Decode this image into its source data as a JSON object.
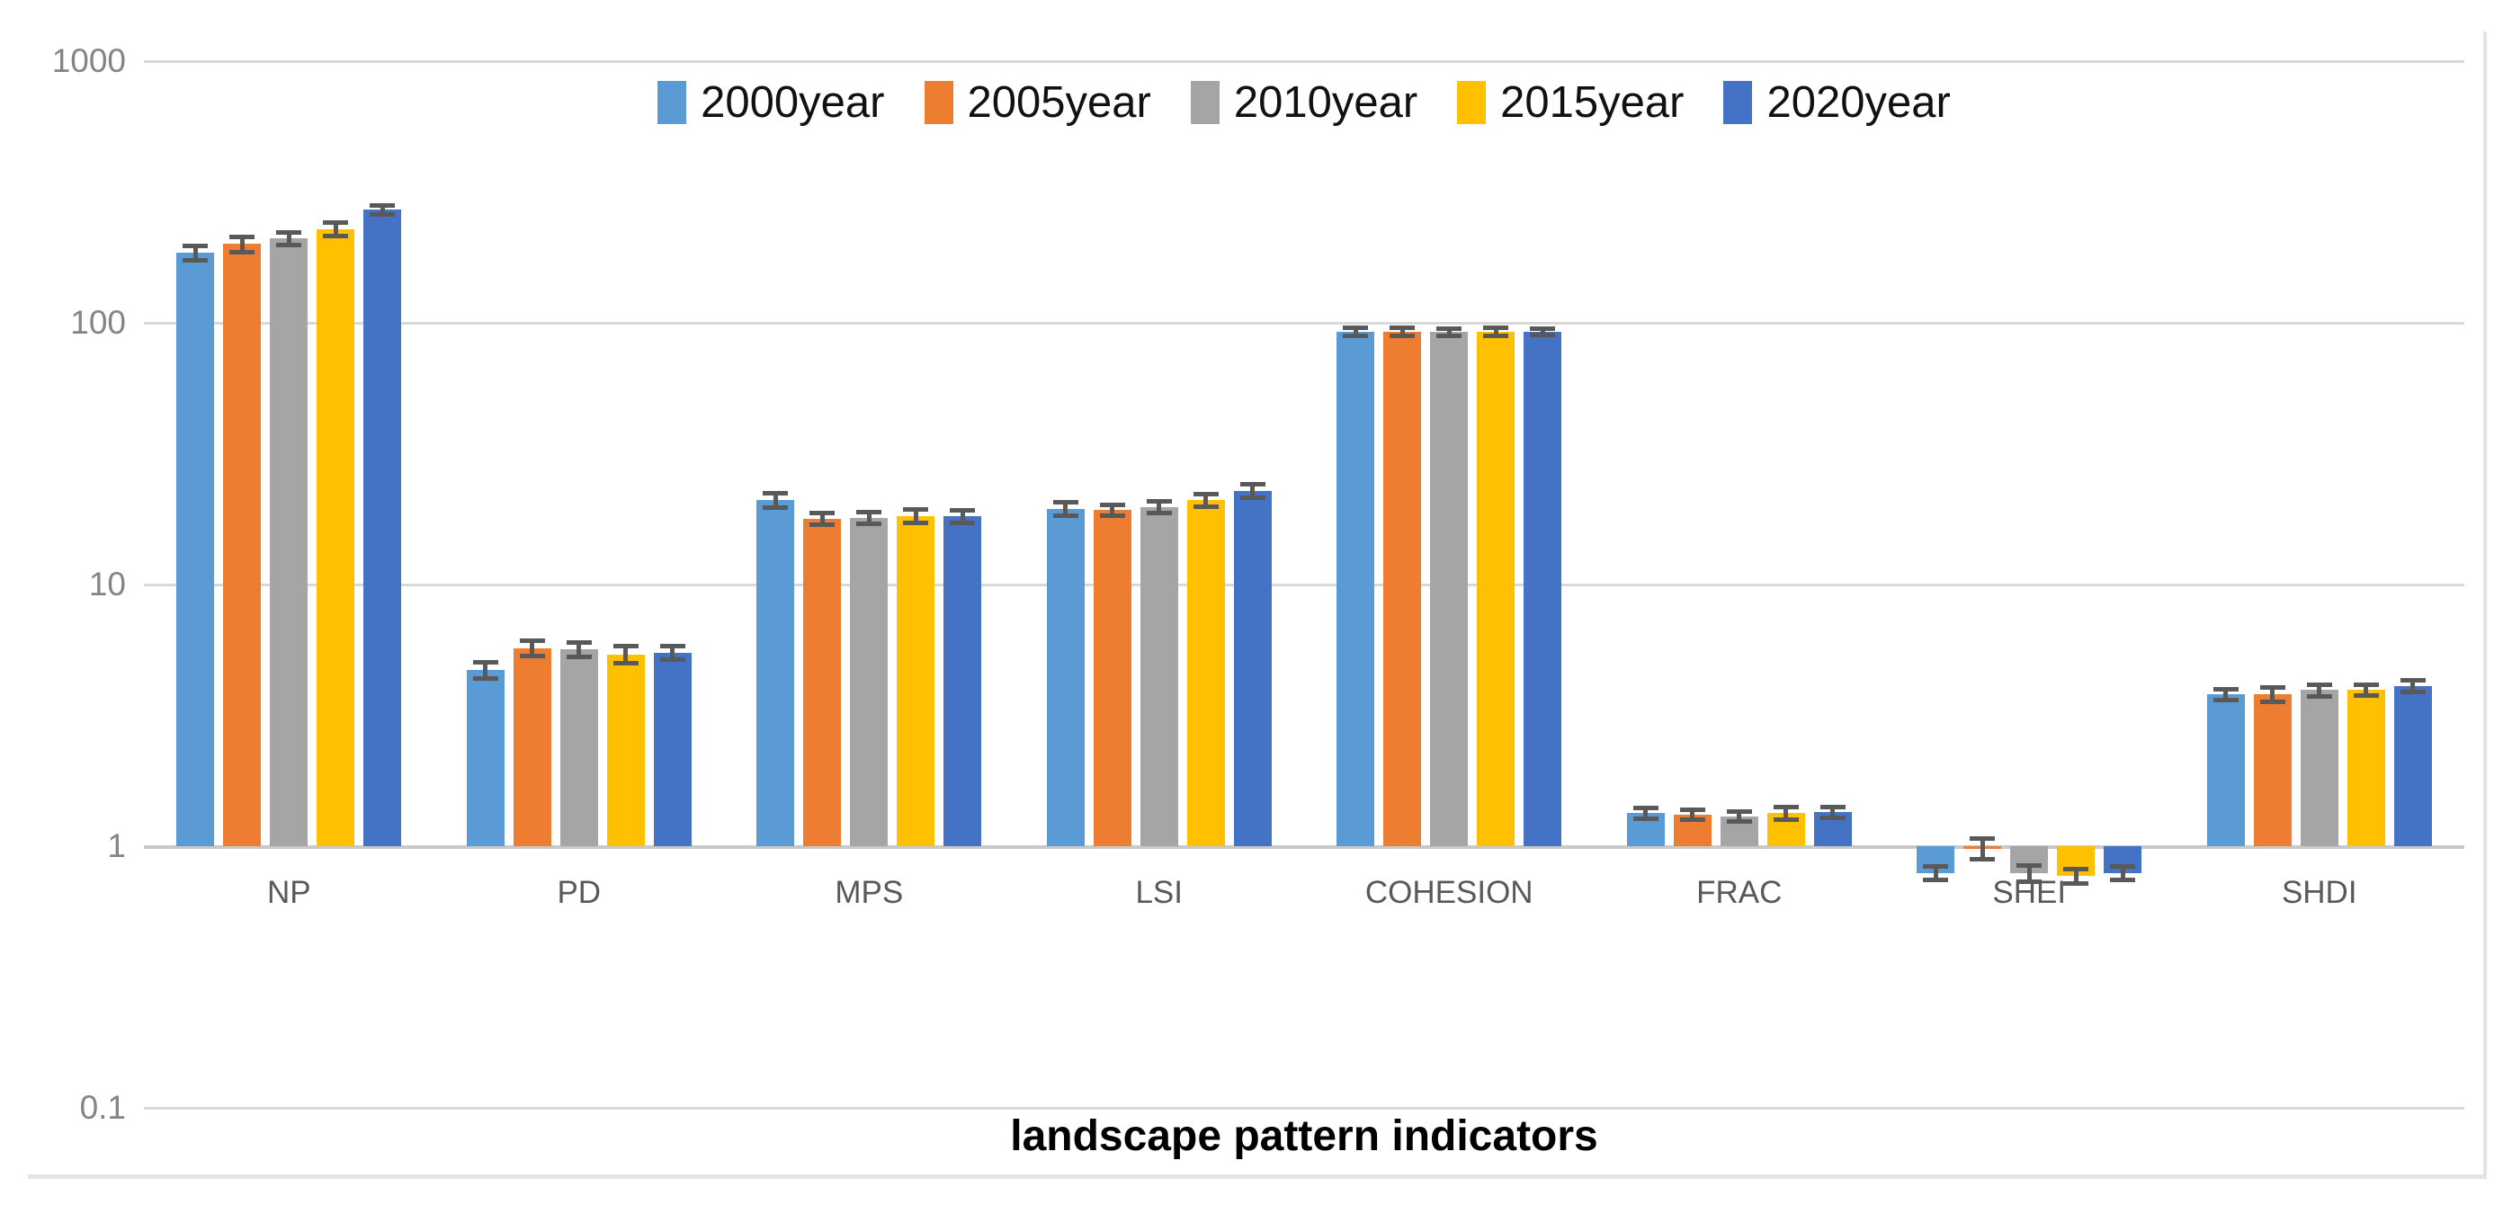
{
  "chart_data": {
    "type": "bar",
    "scale": "log",
    "grid": true,
    "legend_position": "top-center",
    "xlabel": "landscape pattern indicators",
    "ylabel": "",
    "ylim": [
      0.1,
      1000
    ],
    "y_ticks": [
      {
        "label": "1000",
        "value": 1000
      },
      {
        "label": "100",
        "value": 100
      },
      {
        "label": "10",
        "value": 10
      },
      {
        "label": "1",
        "value": 1
      },
      {
        "label": "0.1",
        "value": 0.1
      }
    ],
    "categories": [
      "NP",
      "PD",
      "MPS",
      "LSI",
      "COHESION",
      "FRAC",
      "SHEI",
      "SHDI"
    ],
    "series": [
      {
        "name": "2000year",
        "color": "#5B9BD5",
        "values": [
          185,
          4.7,
          21.0,
          19.5,
          92.5,
          1.34,
          0.79,
          3.8
        ],
        "errors": [
          13,
          0.35,
          1.4,
          1.2,
          3.5,
          0.07,
          0.05,
          0.2
        ]
      },
      {
        "name": "2005year",
        "color": "#ED7D31",
        "values": [
          200,
          5.7,
          17.8,
          19.3,
          92.3,
          1.32,
          0.98,
          3.8
        ],
        "errors": [
          14,
          0.4,
          1.0,
          1.0,
          3.5,
          0.06,
          0.09,
          0.25
        ]
      },
      {
        "name": "2010year",
        "color": "#A5A5A5",
        "values": [
          210,
          5.65,
          18.0,
          19.8,
          92.2,
          1.3,
          0.79,
          3.95
        ],
        "errors": [
          13,
          0.38,
          1.0,
          1.1,
          3.5,
          0.06,
          0.06,
          0.22
        ]
      },
      {
        "name": "2015year",
        "color": "#FFC000",
        "values": [
          228,
          5.4,
          18.3,
          21.0,
          92.5,
          1.34,
          0.77,
          3.95
        ],
        "errors": [
          15,
          0.42,
          1.2,
          1.3,
          3.5,
          0.08,
          0.05,
          0.2
        ]
      },
      {
        "name": "2020year",
        "color": "#4472C4",
        "values": [
          270,
          5.5,
          18.2,
          22.8,
          92.7,
          1.35,
          0.79,
          4.1
        ],
        "errors": [
          12,
          0.36,
          1.1,
          1.5,
          3.0,
          0.07,
          0.05,
          0.22
        ]
      }
    ],
    "style_colors": {
      "gridline": "#D9D9D9",
      "baseline": "#C9C9C9",
      "error_bar": "#595959",
      "y_tick_text": "#848488",
      "category_text": "#595959",
      "legend_text": "#111111",
      "frame_border": "#D9D9D9"
    }
  }
}
